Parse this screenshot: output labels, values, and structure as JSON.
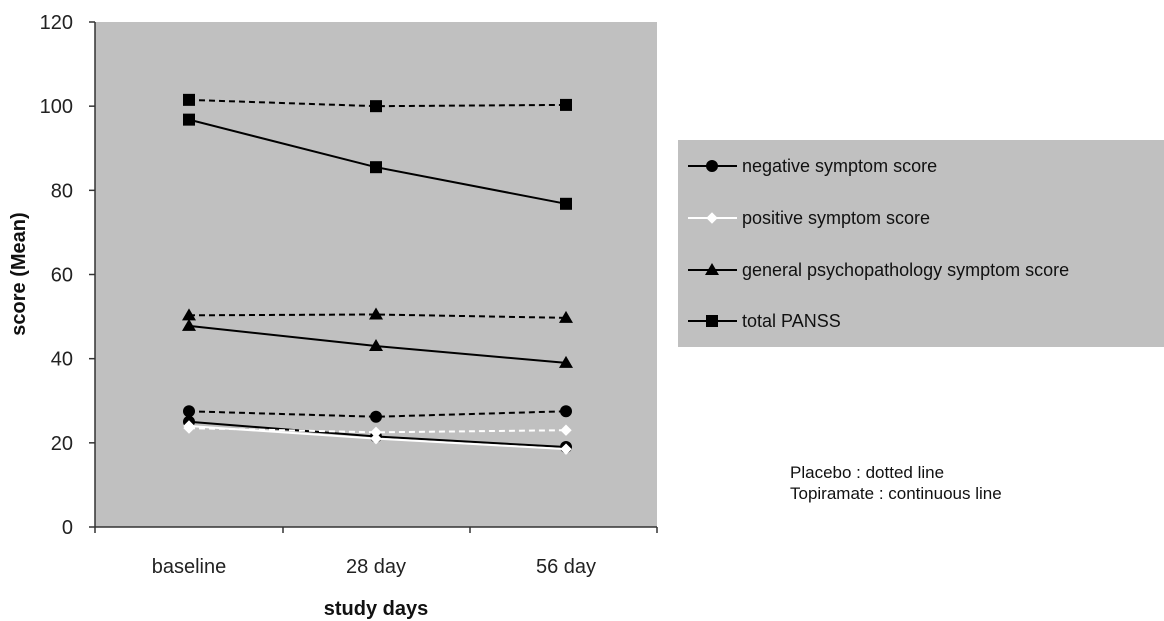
{
  "chart_data": {
    "type": "line",
    "categories": [
      "baseline",
      "28 day",
      "56 day"
    ],
    "xlabel": "study days",
    "ylabel": "score (Mean)",
    "ylim": [
      0,
      120
    ],
    "yticks": [
      0,
      20,
      40,
      60,
      80,
      100,
      120
    ],
    "grid": false,
    "plot_background": "#c0c0c0",
    "legend_placement": "right",
    "series": [
      {
        "name": "negative symptom score",
        "group": "Placebo",
        "style": "dotted",
        "marker": "circle",
        "color": "#000000",
        "values": [
          27.5,
          26.2,
          27.5
        ]
      },
      {
        "name": "negative symptom score",
        "group": "Topiramate",
        "style": "continuous",
        "marker": "circle",
        "color": "#000000",
        "values": [
          25.0,
          21.5,
          19.0
        ]
      },
      {
        "name": "positive symptom score",
        "group": "Placebo",
        "style": "dotted",
        "marker": "diamond",
        "color": "#ffffff",
        "values": [
          23.5,
          22.5,
          23.0
        ]
      },
      {
        "name": "positive symptom score",
        "group": "Topiramate",
        "style": "continuous",
        "marker": "diamond",
        "color": "#ffffff",
        "values": [
          24.0,
          21.0,
          18.5
        ]
      },
      {
        "name": "general psychopathology symptom score",
        "group": "Placebo",
        "style": "dotted",
        "marker": "triangle",
        "color": "#000000",
        "values": [
          50.3,
          50.5,
          49.7
        ]
      },
      {
        "name": "general psychopathology symptom score",
        "group": "Topiramate",
        "style": "continuous",
        "marker": "triangle",
        "color": "#000000",
        "values": [
          47.8,
          43.0,
          39.0
        ]
      },
      {
        "name": "total PANSS",
        "group": "Placebo",
        "style": "dotted",
        "marker": "square",
        "color": "#000000",
        "values": [
          101.5,
          100.0,
          100.3
        ]
      },
      {
        "name": "total PANSS",
        "group": "Topiramate",
        "style": "continuous",
        "marker": "square",
        "color": "#000000",
        "values": [
          96.8,
          85.5,
          76.8
        ]
      }
    ],
    "legend": [
      {
        "label": "negative symptom score",
        "marker": "circle",
        "color": "#000000"
      },
      {
        "label": "positive symptom score",
        "marker": "diamond",
        "color": "#ffffff"
      },
      {
        "label": "general psychopathology symptom score",
        "marker": "triangle",
        "color": "#000000"
      },
      {
        "label": "total PANSS",
        "marker": "square",
        "color": "#000000"
      }
    ]
  },
  "annotation": {
    "line1": "Placebo : dotted line",
    "line2": "Topiramate : continuous line"
  }
}
